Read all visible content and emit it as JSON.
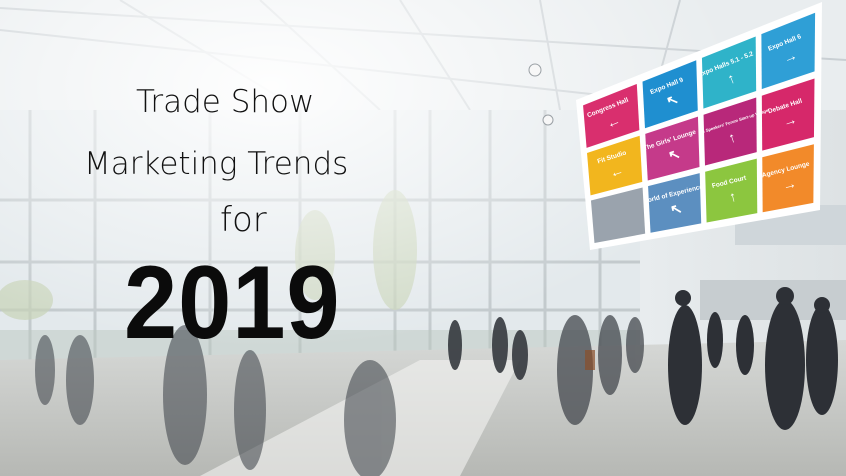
{
  "headline": {
    "line1": "Trade Show",
    "line2": "Marketing Trends",
    "line3": "for",
    "year": "2019"
  },
  "signboard": {
    "tiles": [
      {
        "label": "Expo Hall 6",
        "color": "#2f9fd6",
        "arrow": "right-arrow"
      },
      {
        "label": "Expo Halls 5.1 - 5.2",
        "color": "#2fb3c9",
        "arrow": "up-arrow"
      },
      {
        "label": "Expo Hall 9",
        "color": "#1f8fd0",
        "arrow": "up-left-arrow"
      },
      {
        "label": "Congress Hall",
        "color": "#d92f6e",
        "arrow": "left-arrow"
      },
      {
        "label": "Debate Hall",
        "color": "#d6286a",
        "arrow": "right-arrow"
      },
      {
        "label": "Seminars Speakers' Forum Start-up Village",
        "color": "#b8287a",
        "arrow": "up-arrow"
      },
      {
        "label": "The Girls' Lounge",
        "color": "#c53a8a",
        "arrow": "up-left-arrow"
      },
      {
        "label": "Fit Studio",
        "color": "#f2b61e",
        "arrow": "left-arrow"
      },
      {
        "label": "Agency Lounge",
        "color": "#f28a2a",
        "arrow": "right-arrow"
      },
      {
        "label": "Food Court",
        "color": "#8cc63f",
        "arrow": "up-arrow"
      },
      {
        "label": "World of Experience",
        "color": "#5c8fc0",
        "arrow": "up-left-arrow"
      },
      {
        "label": "",
        "color": "#9aa3ad",
        "arrow": ""
      }
    ]
  }
}
